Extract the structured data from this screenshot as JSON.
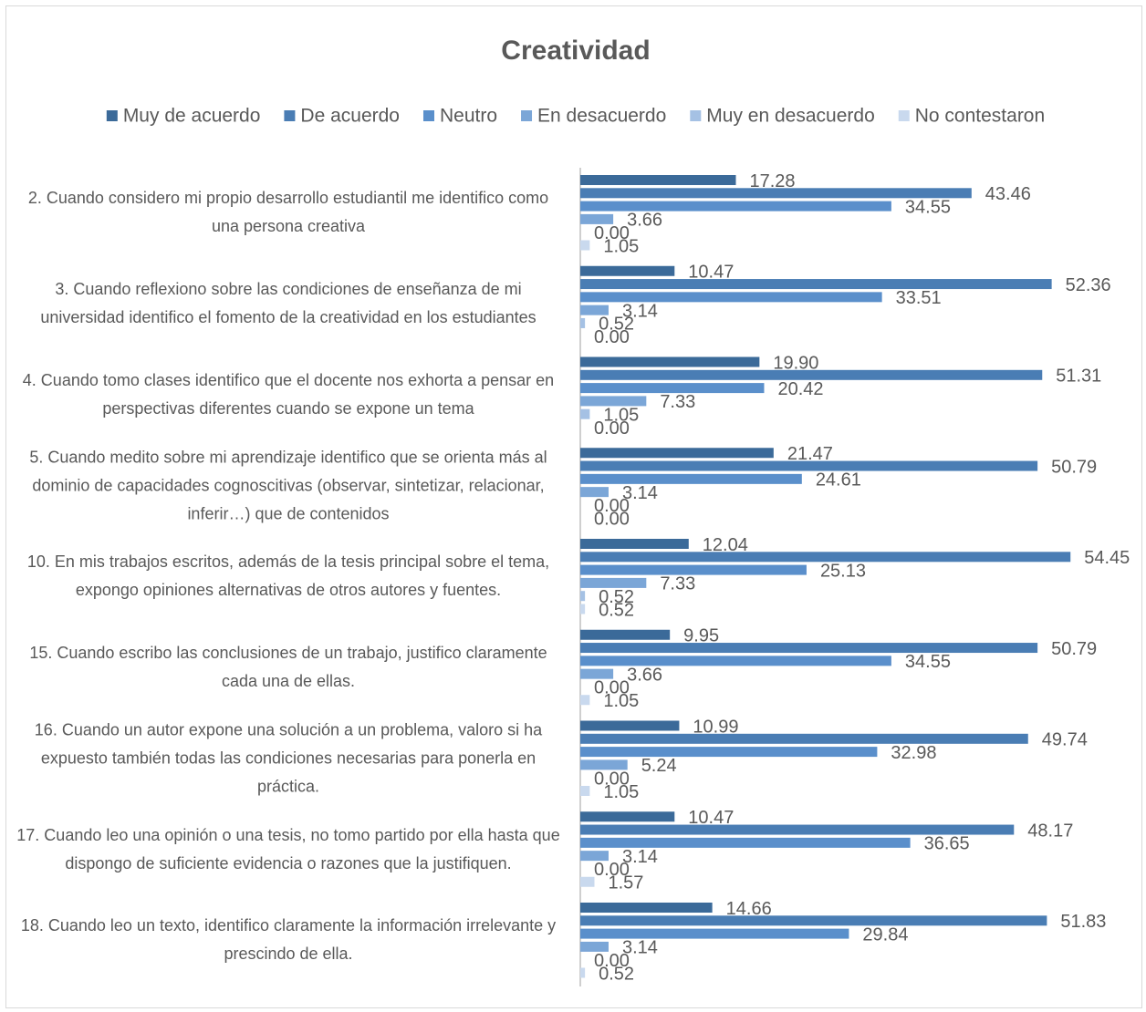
{
  "chart_data": {
    "type": "bar",
    "orientation": "horizontal",
    "title": "Creatividad",
    "categories": [
      "2. Cuando considero mi propio desarrollo estudiantil me identifico como una persona creativa",
      "3. Cuando reflexiono sobre las condiciones de enseñanza de mi universidad identifico el fomento de la creatividad en los estudiantes",
      "4. Cuando tomo clases identifico que el docente nos exhorta a pensar en perspectivas diferentes cuando se expone un tema",
      "5. Cuando medito sobre mi aprendizaje identifico que se orienta más al dominio de capacidades cognoscitivas (observar, sintetizar, relacionar, inferir…) que de contenidos",
      "10. En mis trabajos escritos, además de la tesis principal sobre el tema, expongo opiniones alternativas de otros autores y fuentes.",
      "15. Cuando escribo las conclusiones de un trabajo, justifico claramente cada una de ellas.",
      "16. Cuando un autor expone una solución a un problema, valoro si ha expuesto también todas las condiciones necesarias para ponerla en práctica.",
      "17. Cuando leo una opinión o una tesis, no tomo partido por ella hasta que dispongo de suficiente evidencia o razones que la justifiquen.",
      "18. Cuando leo un texto, identifico claramente la información irrelevante y prescindo de ella."
    ],
    "series": [
      {
        "name": "Muy de acuerdo",
        "color": "#3b6a99",
        "values": [
          17.28,
          10.47,
          19.9,
          21.47,
          12.04,
          9.95,
          10.99,
          10.47,
          14.66
        ],
        "value_labels": [
          "17.28",
          "10.47",
          "19.90",
          "21.47",
          "12.04",
          "9.95",
          "10.99",
          "10.47",
          "14.66"
        ]
      },
      {
        "name": "De acuerdo",
        "color": "#4a7db4",
        "values": [
          43.46,
          52.36,
          51.31,
          50.79,
          54.45,
          50.79,
          49.74,
          48.17,
          51.83
        ],
        "value_labels": [
          "43.46",
          "52.36",
          "51.31",
          "50.79",
          "54.45",
          "50.79",
          "49.74",
          "48.17",
          "51.83"
        ]
      },
      {
        "name": "Neutro",
        "color": "#5a8fcb",
        "values": [
          34.55,
          33.51,
          20.42,
          24.61,
          25.13,
          34.55,
          32.98,
          36.65,
          29.84
        ],
        "value_labels": [
          "34.55",
          "33.51",
          "20.42",
          "24.61",
          "25.13",
          "34.55",
          "32.98",
          "36.65",
          "29.84"
        ]
      },
      {
        "name": "En desacuerdo",
        "color": "#7ba6d7",
        "values": [
          3.66,
          3.14,
          7.33,
          3.14,
          7.33,
          3.66,
          5.24,
          3.14,
          3.14
        ],
        "value_labels": [
          "3.66",
          "3.14",
          "7.33",
          "3.14",
          "7.33",
          "3.66",
          "5.24",
          "3.14",
          "3.14"
        ]
      },
      {
        "name": "Muy en desacuerdo",
        "color": "#a5c1e4",
        "values": [
          0,
          0.52,
          1.05,
          0,
          0.52,
          0,
          0,
          0,
          0
        ],
        "value_labels": [
          "0.00",
          "0.52",
          "1.05",
          "0.00",
          "0.52",
          "0.00",
          "0.00",
          "0.00",
          "0.00"
        ]
      },
      {
        "name": "No contestaron",
        "color": "#c9d9ee",
        "values": [
          1.05,
          0,
          0,
          0,
          0.52,
          1.05,
          1.05,
          1.57,
          0.52
        ],
        "value_labels": [
          "1.05",
          "0.00",
          "0.00",
          "0.00",
          "0.52",
          "1.05",
          "1.05",
          "1.57",
          "0.52"
        ]
      }
    ],
    "xlim": [
      0,
      60
    ],
    "legend": "top"
  }
}
